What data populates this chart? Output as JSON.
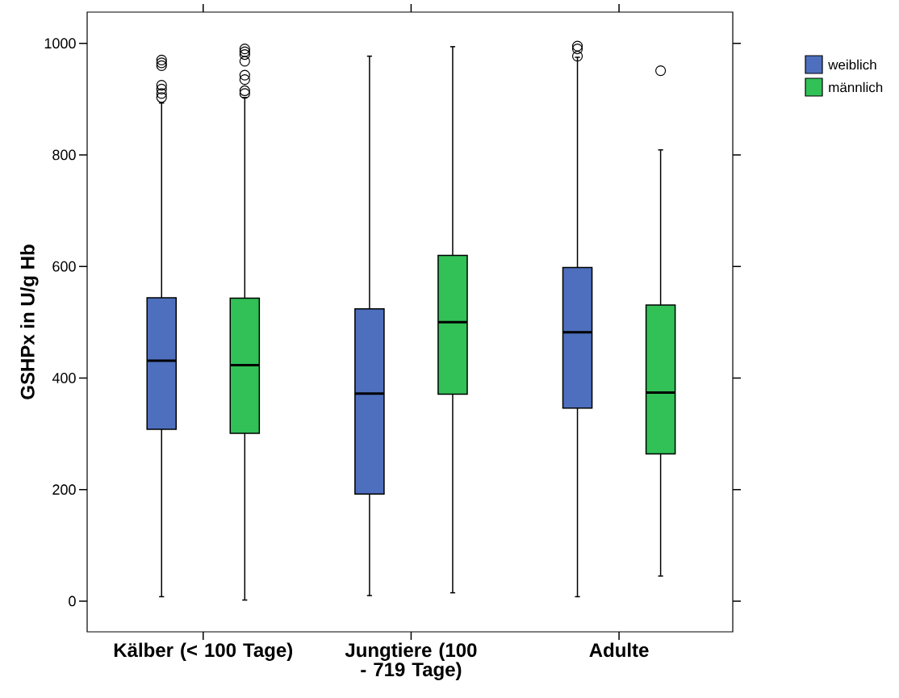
{
  "chart_data": {
    "type": "box",
    "ylabel": "GSHPx in U/g Hb",
    "categories": [
      "Kälber (< 100 Tage)",
      "Jungtiere (100 - 719 Tage)",
      "Adulte"
    ],
    "ylim": [
      -55,
      1056
    ],
    "yticks": [
      0,
      200,
      400,
      600,
      800,
      1000
    ],
    "legend": "top right",
    "series": [
      {
        "name": "weiblich",
        "color": "#4e6fbd",
        "boxes": [
          {
            "low": 8,
            "q1": 308,
            "median": 431,
            "q3": 544,
            "high": 893,
            "outliers": [
              970,
              965,
              960,
              925,
              918,
              910,
              903
            ]
          },
          {
            "low": 10,
            "q1": 192,
            "median": 372,
            "q3": 524,
            "high": 977
          },
          {
            "low": 8,
            "q1": 346,
            "median": 482,
            "q3": 598,
            "high": 975,
            "outliers": [
              995,
              990,
              977
            ]
          }
        ]
      },
      {
        "name": "männlich",
        "color": "#31c156",
        "boxes": [
          {
            "low": 2,
            "q1": 301,
            "median": 423,
            "q3": 543,
            "high": 903,
            "outliers": [
              990,
              985,
              980,
              968,
              943,
              935,
              915,
              910
            ]
          },
          {
            "low": 15,
            "q1": 371,
            "median": 500,
            "q3": 620,
            "high": 994
          },
          {
            "low": 45,
            "q1": 264,
            "median": 374,
            "q3": 531,
            "high": 809,
            "outliers": [
              951
            ]
          }
        ]
      }
    ]
  }
}
